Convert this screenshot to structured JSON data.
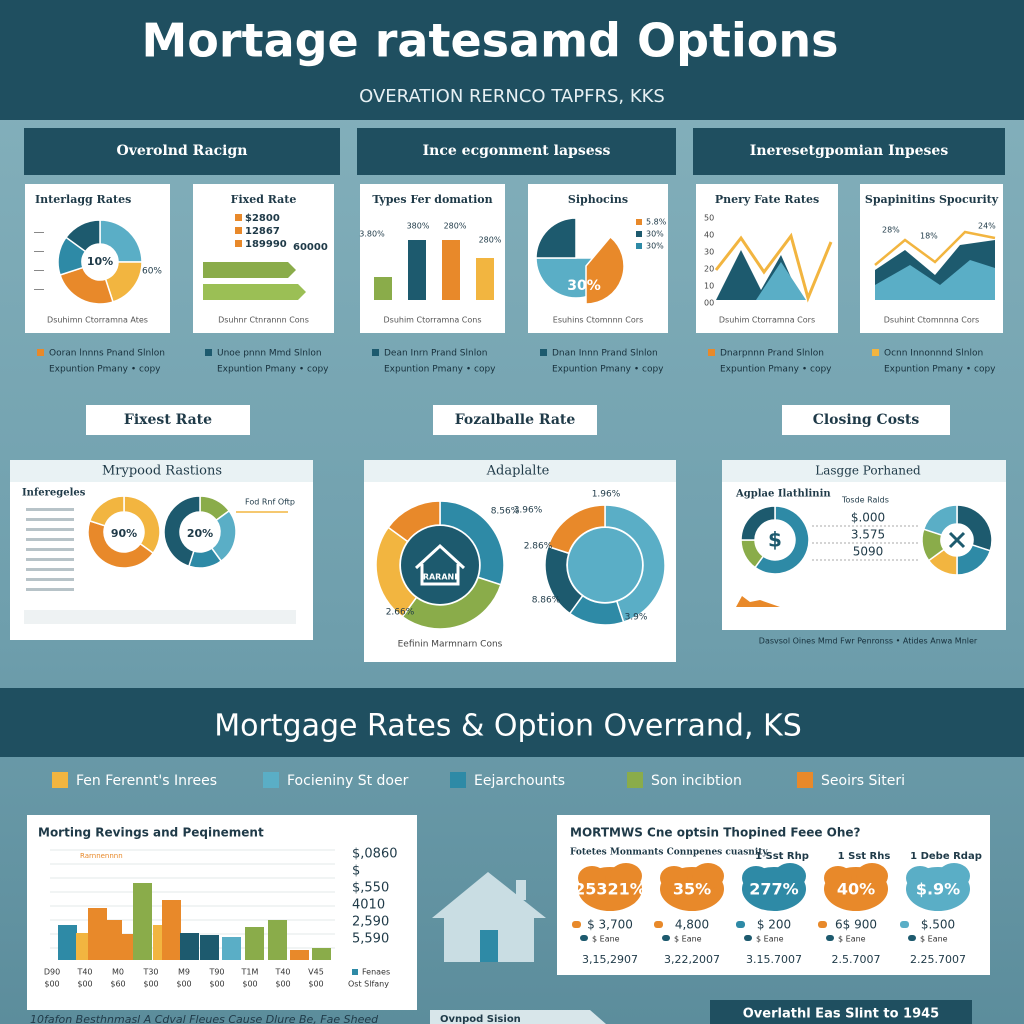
{
  "header": {
    "title": "Mortage ratesamd  Options",
    "subtitle": "OVERATION RERNCO TAPFRS, KKS"
  },
  "sections": [
    "Overolnd Racign",
    "Ince ecgonment lapsess",
    "Ineresetgpomian Inpeses"
  ],
  "cards": [
    {
      "title": "Interlagg Rates",
      "labels": [
        "10%",
        "60%"
      ],
      "footer": "Dsuhimn Ctorramna Ates"
    },
    {
      "title": "Fixed Rate",
      "labels": [
        "$2800",
        "12867",
        "189990",
        "60000"
      ],
      "footer": "Dsuhnr Ctnrannn Cons"
    },
    {
      "title": "Types Fer domation",
      "labels": [
        "3.80%",
        "380%",
        "280%",
        "280%"
      ],
      "footer": "Dsuhim Ctorramna Cons"
    },
    {
      "title": "Siphocins",
      "labels": [
        "30%",
        "5.8%",
        "30%",
        "30%"
      ],
      "footer": "Esuhins Ctomnnn Cors"
    },
    {
      "title": "Pnery Fate Rates",
      "labels": [
        "50",
        "40",
        "30",
        "20",
        "10",
        "00"
      ],
      "footer": "Dsuhim Ctorramna Cors"
    },
    {
      "title": "Spapinitins Spocurity",
      "labels": [
        "28%",
        "18%",
        "24%"
      ],
      "footer": "Dsuhint Ctomnnna Cors"
    }
  ],
  "legends": [
    [
      "Ooran lnnns Pnand Slnlon",
      "Expuntion Pmany • copy"
    ],
    [
      "Unoe pnnn Mmd Slnlon",
      "Expuntion Pmany • copy"
    ],
    [
      "Dean Inrn Prand Slnlon",
      "Expuntion Pmany • copy"
    ],
    [
      "Dnan Innn Prand Slnlon",
      "Expuntion Pmany • copy"
    ],
    [
      "Dnarpnnn Prand Slnlon",
      "Expuntion Pmany • copy"
    ],
    [
      "Ocnn Innonnnd Slnlon",
      "Expuntion Pmany • copy"
    ]
  ],
  "labels": [
    "Fixest Rate",
    "Fozalballe Rate",
    "Closing Costs"
  ],
  "panels": [
    {
      "title": "Mrypood Rastions",
      "sub": "Inferegeles",
      "labels": [
        "90%",
        "20%"
      ],
      "side": "Fod Rnf Oftp"
    },
    {
      "title": "Adaplalte",
      "labels": [
        "8.56%",
        "2.66%",
        "2.86%",
        "1.96%",
        "8.86%",
        "3.9%",
        "3.96%"
      ],
      "center": "RARANI",
      "footer": "Eefinin Marmnarn Cons"
    },
    {
      "title": "Lasgge Porhaned",
      "sub": "Agplae Ilathlinin",
      "labels": [
        "$.000",
        "3.575",
        "5090",
        "$"
      ],
      "side": "Tosde Ralds",
      "footer": "Dasvsol Oines  Mmd Fwr Penronss • Atides  Anwa Mnler"
    }
  ],
  "band": {
    "title": "Mortgage Rates & Option Overrand, KS",
    "legend": [
      "Fen Ferennt's Inrees",
      "Focieniny St doer",
      "Eejarchounts",
      "Son incibtion",
      "Seoirs Siteri"
    ]
  },
  "bar_card": {
    "title": "Morting Revings and Peqinement",
    "sub": "Rarnnennnn",
    "values": [
      "$,0860",
      "$",
      "$,550",
      "4010",
      "2,590",
      "5,590"
    ],
    "xlabels": [
      "D90",
      "T40",
      "M0",
      "T30",
      "M9",
      "T90",
      "T1M",
      "T40",
      "V45"
    ],
    "xsub": [
      "$00",
      "$00",
      "$60",
      "$00",
      "$00",
      "$00",
      "$00",
      "$00",
      "$00"
    ],
    "key": "Fenaes",
    "key2": "Ost Slfany"
  },
  "fees_card": {
    "title": "MORTMWS Cne optsin Thopined Feee Ohe?",
    "sub": "Fotetes Monmants Connpenes cuasnity",
    "badges": [
      {
        "head": "",
        "value": "25321%",
        "amount": "$ 3,700",
        "small": "$ Eane",
        "date": "3,15,2907"
      },
      {
        "head": "",
        "value": "35%",
        "amount": "4,800",
        "small": "$ Eane",
        "date": "3,22,2007"
      },
      {
        "head": "1 Sst Rhp",
        "value": "277%",
        "amount": "$ 200",
        "small": "$ Eane",
        "date": "3.15.7007"
      },
      {
        "head": "1 Sst Rhs",
        "value": "40%",
        "amount": "6$ 900",
        "small": "$ Eane",
        "date": "2.5.7007"
      },
      {
        "head": "1 Debe Rdap",
        "value": "$.9%",
        "amount": "$.500",
        "small": "$ Eane",
        "date": "2.25.7007"
      }
    ]
  },
  "footer": {
    "left": "10fafon Besthnmasl A Cdval Fleues Cause Dlure Be, Fae Sheed",
    "tab": "Ovnpod Sision",
    "box": "Overlathl Eas Slint to 1945"
  }
}
